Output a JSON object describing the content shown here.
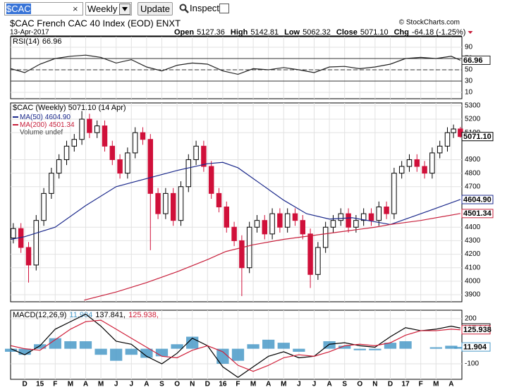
{
  "toolbar": {
    "symbol": "$CAC",
    "clear": "×",
    "period": "Weekly",
    "update": "Update",
    "inspect": "Inspect"
  },
  "header": {
    "title": "$CAC French CAC 40 Index (EOD) ENXT",
    "copyright": "© StockCharts.com",
    "date": "13-Apr-2017",
    "quote": [
      {
        "label": "Open",
        "value": "5127.36"
      },
      {
        "label": "High",
        "value": "5142.81"
      },
      {
        "label": "Low",
        "value": "5062.32"
      },
      {
        "label": "Close",
        "value": "5071.10"
      },
      {
        "label": "Chg",
        "value": "-64.18 (-1.25%)"
      }
    ]
  },
  "chart_data": [
    {
      "type": "line",
      "title": "RSI(14)",
      "ylim": [
        -1.25,
        108.75
      ],
      "yticks": [
        90,
        70,
        50,
        30,
        10
      ],
      "grid": true,
      "xlim": [
        -0.93,
        28.7
      ],
      "xticks": [
        0,
        1,
        2,
        3,
        4,
        5,
        6,
        7,
        8,
        9,
        10,
        11,
        12,
        13,
        14,
        15,
        16,
        17,
        18,
        19,
        20,
        21,
        22,
        23,
        24,
        25,
        26,
        27,
        28
      ],
      "levels": [
        {
          "value": 70
        },
        {
          "value": 50,
          "dashed": true
        },
        {
          "value": 30
        }
      ],
      "series": [
        {
          "color": "#222222",
          "last_label": "66.96",
          "x": [
            -0.9,
            0,
            1,
            2,
            3,
            4,
            5,
            6,
            7,
            8,
            9,
            10,
            11,
            12,
            13,
            14,
            15,
            16,
            17,
            18,
            19,
            20,
            21,
            22,
            23,
            24,
            25,
            26,
            27,
            28,
            28.6
          ],
          "values": [
            52,
            45,
            60,
            70,
            74,
            76,
            72,
            62,
            68,
            55,
            48,
            58,
            62,
            60,
            48,
            42,
            52,
            50,
            54,
            50,
            45,
            55,
            56,
            52,
            55,
            60,
            70,
            72,
            70,
            74,
            66.96
          ]
        }
      ]
    },
    {
      "type": "candlestick",
      "title": "$CAC (Weekly) 5071.10 (14 Apr)",
      "note": "Volume undef",
      "ylim": [
        3848,
        5320
      ],
      "yticks": [
        5300,
        5200,
        5100,
        4900,
        4800,
        4700,
        4400,
        4300,
        4200,
        4100,
        4000,
        3900
      ],
      "grid": true,
      "xlim": [
        -0.93,
        28.7
      ],
      "xticks": [
        0,
        1,
        2,
        3,
        4,
        5,
        6,
        7,
        8,
        9,
        10,
        11,
        12,
        13,
        14,
        15,
        16,
        17,
        18,
        19,
        20,
        21,
        22,
        23,
        24,
        25,
        26,
        27,
        28
      ],
      "up_color": "#000000",
      "down_color": "#d0103a",
      "last_label": "5071.10",
      "x": [
        -0.75,
        -0.25,
        0.25,
        0.75,
        1.25,
        1.75,
        2.25,
        2.75,
        3.25,
        3.75,
        4.25,
        4.75,
        5.25,
        5.75,
        6.25,
        6.75,
        7.25,
        7.75,
        8.25,
        8.75,
        9.25,
        9.75,
        10.25,
        10.75,
        11.25,
        11.75,
        12.25,
        12.75,
        13.25,
        13.75,
        14.25,
        14.75,
        15.25,
        15.75,
        16.25,
        16.75,
        17.25,
        17.75,
        18.25,
        18.75,
        19.25,
        19.75,
        20.25,
        20.75,
        21.25,
        21.75,
        22.25,
        22.75,
        23.25,
        23.75,
        24.25,
        24.75,
        25.25,
        25.75,
        26.25,
        26.75,
        27.25,
        27.75,
        28.15,
        28.6
      ],
      "ohlc": [
        [
          4320,
          4430,
          4280,
          4390
        ],
        [
          4390,
          4430,
          4210,
          4250
        ],
        [
          4250,
          4290,
          3990,
          4120
        ],
        [
          4120,
          4490,
          4080,
          4450
        ],
        [
          4450,
          4690,
          4410,
          4650
        ],
        [
          4650,
          4840,
          4610,
          4800
        ],
        [
          4800,
          4940,
          4760,
          4900
        ],
        [
          4900,
          5040,
          4860,
          5000
        ],
        [
          5000,
          5090,
          4960,
          5050
        ],
        [
          5050,
          5260,
          5010,
          5200
        ],
        [
          5200,
          5240,
          5060,
          5100
        ],
        [
          5100,
          5190,
          5060,
          5150
        ],
        [
          5150,
          5190,
          4960,
          5000
        ],
        [
          5000,
          5040,
          4860,
          4900
        ],
        [
          4900,
          4940,
          4760,
          4800
        ],
        [
          4800,
          4990,
          4760,
          4950
        ],
        [
          4950,
          5140,
          4910,
          5100
        ],
        [
          5100,
          5140,
          5010,
          5050
        ],
        [
          5050,
          5090,
          4230,
          4650
        ],
        [
          4650,
          4690,
          4460,
          4500
        ],
        [
          4500,
          4690,
          4460,
          4650
        ],
        [
          4650,
          4690,
          4410,
          4450
        ],
        [
          4450,
          4740,
          4410,
          4700
        ],
        [
          4700,
          4940,
          4660,
          4900
        ],
        [
          4900,
          5040,
          4860,
          5000
        ],
        [
          5000,
          5040,
          4810,
          4850
        ],
        [
          4850,
          4890,
          4610,
          4650
        ],
        [
          4650,
          4690,
          4510,
          4550
        ],
        [
          4550,
          4590,
          4360,
          4400
        ],
        [
          4400,
          4440,
          4260,
          4300
        ],
        [
          4300,
          4340,
          3890,
          4100
        ],
        [
          4100,
          4440,
          4060,
          4400
        ],
        [
          4400,
          4490,
          4360,
          4450
        ],
        [
          4450,
          4490,
          4310,
          4350
        ],
        [
          4350,
          4540,
          4310,
          4500
        ],
        [
          4500,
          4540,
          4360,
          4400
        ],
        [
          4400,
          4540,
          4360,
          4500
        ],
        [
          4500,
          4540,
          4410,
          4450
        ],
        [
          4450,
          4490,
          4310,
          4350
        ],
        [
          4350,
          4390,
          3950,
          4050
        ],
        [
          4050,
          4290,
          4010,
          4250
        ],
        [
          4250,
          4440,
          4210,
          4400
        ],
        [
          4400,
          4490,
          4360,
          4450
        ],
        [
          4450,
          4540,
          4410,
          4500
        ],
        [
          4500,
          4540,
          4360,
          4400
        ],
        [
          4400,
          4490,
          4360,
          4450
        ],
        [
          4450,
          4540,
          4410,
          4500
        ],
        [
          4500,
          4540,
          4410,
          4450
        ],
        [
          4450,
          4590,
          4410,
          4550
        ],
        [
          4550,
          4590,
          4460,
          4500
        ],
        [
          4500,
          4840,
          4460,
          4800
        ],
        [
          4800,
          4890,
          4760,
          4850
        ],
        [
          4850,
          4940,
          4810,
          4900
        ],
        [
          4900,
          4940,
          4810,
          4850
        ],
        [
          4850,
          4890,
          4760,
          4800
        ],
        [
          4800,
          4990,
          4760,
          4950
        ],
        [
          4950,
          5040,
          4910,
          5000
        ],
        [
          5000,
          5140,
          4960,
          5100
        ],
        [
          5100,
          5160,
          5060,
          5127
        ],
        [
          5127.36,
          5142.81,
          5062.32,
          5071.1
        ]
      ],
      "series": [
        {
          "name": "MA(50)",
          "color": "#1c2a8c",
          "last_label": "4604.90",
          "x": [
            -0.9,
            0,
            2,
            4,
            6,
            8,
            10,
            12,
            13,
            14,
            15.5,
            17,
            18.5,
            20,
            21.5,
            23,
            24,
            25,
            26.5,
            28.6
          ],
          "values": [
            4310,
            4330,
            4400,
            4560,
            4700,
            4760,
            4820,
            4870,
            4880,
            4840,
            4720,
            4600,
            4500,
            4460,
            4470,
            4440,
            4420,
            4460,
            4520,
            4604.9
          ]
        },
        {
          "name": "MA(200)",
          "color": "#c8203c",
          "last_label": "4501.34",
          "x": [
            3.9,
            6,
            8,
            10,
            12,
            13.2,
            15,
            17,
            19,
            21,
            23,
            24,
            26,
            28.6
          ],
          "values": [
            3860,
            3920,
            3990,
            4070,
            4160,
            4220,
            4270,
            4310,
            4340,
            4370,
            4400,
            4420,
            4450,
            4501.34
          ]
        }
      ]
    },
    {
      "type": "line",
      "title": "MACD(12,26,9)",
      "ylim": [
        -203,
        256
      ],
      "yticks": [
        200,
        -100
      ],
      "grid": true,
      "xlim": [
        -0.93,
        28.7
      ],
      "xticks": [
        {
          "value": 0,
          "label": "D"
        },
        {
          "value": 1,
          "label": "15"
        },
        {
          "value": 2,
          "label": "F"
        },
        {
          "value": 3,
          "label": "M"
        },
        {
          "value": 4,
          "label": "A"
        },
        {
          "value": 5,
          "label": "M"
        },
        {
          "value": 6,
          "label": "J"
        },
        {
          "value": 7,
          "label": "J"
        },
        {
          "value": 8,
          "label": "A"
        },
        {
          "value": 9,
          "label": "S"
        },
        {
          "value": 10,
          "label": "O"
        },
        {
          "value": 11,
          "label": "N"
        },
        {
          "value": 12,
          "label": "D"
        },
        {
          "value": 13,
          "label": "16"
        },
        {
          "value": 14,
          "label": "F"
        },
        {
          "value": 15,
          "label": "M"
        },
        {
          "value": 16,
          "label": "A"
        },
        {
          "value": 17,
          "label": "M"
        },
        {
          "value": 18,
          "label": "J"
        },
        {
          "value": 19,
          "label": "J"
        },
        {
          "value": 20,
          "label": "A"
        },
        {
          "value": 21,
          "label": "S"
        },
        {
          "value": 22,
          "label": "O"
        },
        {
          "value": 23,
          "label": "N"
        },
        {
          "value": 24,
          "label": "D"
        },
        {
          "value": 25,
          "label": "17"
        },
        {
          "value": 26,
          "label": "F"
        },
        {
          "value": 27,
          "label": "M"
        },
        {
          "value": 28,
          "label": "A"
        }
      ],
      "series": [
        {
          "type": "bar",
          "color": "#4a9ac8",
          "legend_text": "11.904",
          "last_label": "11.904",
          "x": [
            -0.9,
            0,
            1,
            2,
            3,
            4,
            5,
            6,
            7,
            8,
            9,
            10,
            11,
            12,
            13,
            14,
            15,
            16,
            17,
            18,
            19,
            20,
            21,
            22,
            23,
            24,
            25,
            26,
            27,
            28,
            28.6
          ],
          "values": [
            -20,
            -40,
            30,
            70,
            50,
            50,
            -40,
            -80,
            -40,
            -60,
            -50,
            30,
            80,
            0,
            -100,
            -80,
            30,
            60,
            40,
            -20,
            0,
            50,
            20,
            -10,
            -10,
            40,
            50,
            0,
            10,
            20,
            11.904
          ]
        },
        {
          "type": "line",
          "color": "#000000",
          "legend_text": "137.841,",
          "last_label": "137.841",
          "x": [
            -0.9,
            0,
            1,
            2,
            3,
            4,
            5,
            6,
            7,
            8,
            9,
            10,
            11,
            12,
            13,
            14,
            15,
            16,
            17,
            18,
            19,
            20,
            21,
            22,
            23,
            24,
            25,
            26,
            27,
            28,
            28.6
          ],
          "values": [
            0,
            -40,
            20,
            130,
            180,
            230,
            150,
            50,
            30,
            -50,
            -100,
            -30,
            70,
            20,
            -120,
            -190,
            -120,
            -50,
            -20,
            -60,
            -50,
            30,
            40,
            20,
            10,
            80,
            140,
            120,
            130,
            150,
            137.841
          ]
        },
        {
          "type": "line",
          "color": "#d0203a",
          "legend_text": "125.938,",
          "last_label": "125.938",
          "x": [
            -0.9,
            0,
            1,
            2,
            3,
            4,
            5,
            6,
            7,
            8,
            9,
            10,
            11,
            12,
            13,
            14,
            15,
            16,
            17,
            18,
            19,
            20,
            21,
            22,
            23,
            24,
            25,
            26,
            27,
            28,
            28.6
          ],
          "values": [
            20,
            0,
            -10,
            60,
            130,
            180,
            190,
            130,
            70,
            10,
            -50,
            -60,
            -10,
            20,
            -20,
            -110,
            -150,
            -110,
            -60,
            -40,
            -50,
            -20,
            20,
            30,
            20,
            40,
            90,
            120,
            120,
            130,
            125.938
          ]
        }
      ]
    }
  ]
}
